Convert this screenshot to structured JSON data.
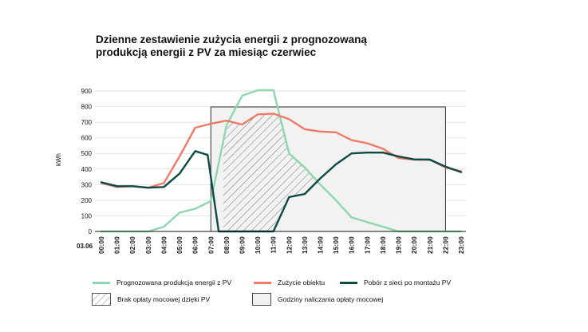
{
  "chart_data": {
    "type": "line",
    "title_lines": [
      "Dzienne zestawienie zużycia energii z prognozowaną",
      "produkcją energii z PV za miesiąc czerwiec"
    ],
    "ylabel": "kWh",
    "date_label": "03.06",
    "ylim": [
      0,
      900
    ],
    "yticks": [
      "0",
      "100",
      "200",
      "300",
      "400",
      "500",
      "600",
      "700",
      "800",
      "900"
    ],
    "categories": [
      "00:00",
      "01:00",
      "02:00",
      "03:00",
      "04:00",
      "05:00",
      "06:00",
      "07:00",
      "08:00",
      "09:00",
      "10:00",
      "11:00",
      "12:00",
      "13:00",
      "14:00",
      "15:00",
      "16:00",
      "17:00",
      "18:00",
      "19:00",
      "20:00",
      "21:00",
      "22:00",
      "23:00"
    ],
    "series": [
      {
        "name": "Prognozowana produkcja energii z PV",
        "color": "#8fd6ad",
        "points": [
          [
            0,
            0
          ],
          [
            1,
            0
          ],
          [
            2,
            0
          ],
          [
            3,
            0
          ],
          [
            4,
            30
          ],
          [
            5,
            120
          ],
          [
            6,
            145
          ],
          [
            7,
            195
          ],
          [
            8,
            680
          ],
          [
            9,
            870
          ],
          [
            10,
            905
          ],
          [
            11,
            905
          ],
          [
            12,
            500
          ],
          [
            13,
            410
          ],
          [
            14,
            300
          ],
          [
            15,
            200
          ],
          [
            16,
            90
          ],
          [
            17,
            60
          ],
          [
            18,
            30
          ],
          [
            19,
            0
          ],
          [
            20,
            0
          ],
          [
            21,
            0
          ],
          [
            22,
            0
          ],
          [
            23,
            0
          ]
        ]
      },
      {
        "name": "Zużycie obiektu",
        "color": "#f07a68",
        "points": [
          [
            0,
            310
          ],
          [
            1,
            285
          ],
          [
            2,
            290
          ],
          [
            3,
            280
          ],
          [
            4,
            310
          ],
          [
            5,
            480
          ],
          [
            6,
            665
          ],
          [
            7,
            690
          ],
          [
            8,
            710
          ],
          [
            9,
            685
          ],
          [
            10,
            750
          ],
          [
            11,
            755
          ],
          [
            12,
            720
          ],
          [
            13,
            655
          ],
          [
            14,
            640
          ],
          [
            15,
            635
          ],
          [
            16,
            585
          ],
          [
            17,
            565
          ],
          [
            18,
            530
          ],
          [
            19,
            470
          ],
          [
            20,
            460
          ],
          [
            21,
            460
          ],
          [
            22,
            410
          ],
          [
            23,
            385
          ]
        ]
      },
      {
        "name": "Pobór z sieci po montażu PV",
        "color": "#0d4a45",
        "points": [
          [
            0,
            315
          ],
          [
            1,
            290
          ],
          [
            2,
            290
          ],
          [
            3,
            280
          ],
          [
            4,
            285
          ],
          [
            5,
            370
          ],
          [
            6,
            515
          ],
          [
            6.8,
            490
          ],
          [
            7.5,
            0
          ],
          [
            8,
            0
          ],
          [
            9,
            0
          ],
          [
            10,
            0
          ],
          [
            11,
            0
          ],
          [
            12,
            220
          ],
          [
            13,
            240
          ],
          [
            14,
            340
          ],
          [
            15,
            430
          ],
          [
            16,
            500
          ],
          [
            17,
            505
          ],
          [
            18,
            505
          ],
          [
            19,
            480
          ],
          [
            20,
            462
          ],
          [
            21,
            460
          ],
          [
            22,
            415
          ],
          [
            23,
            380
          ]
        ]
      }
    ],
    "peak_window": {
      "start": 7,
      "end": 22
    },
    "legend": {
      "pv": "Prognozowana produkcja energii z PV",
      "consumption": "Zużycie obiektu",
      "grid": "Pobór z sieci po montażu PV",
      "hatched": "Brak opłaty mocowej dzięki PV",
      "shaded": "Godziny naliczania opłaty mocowej"
    }
  }
}
